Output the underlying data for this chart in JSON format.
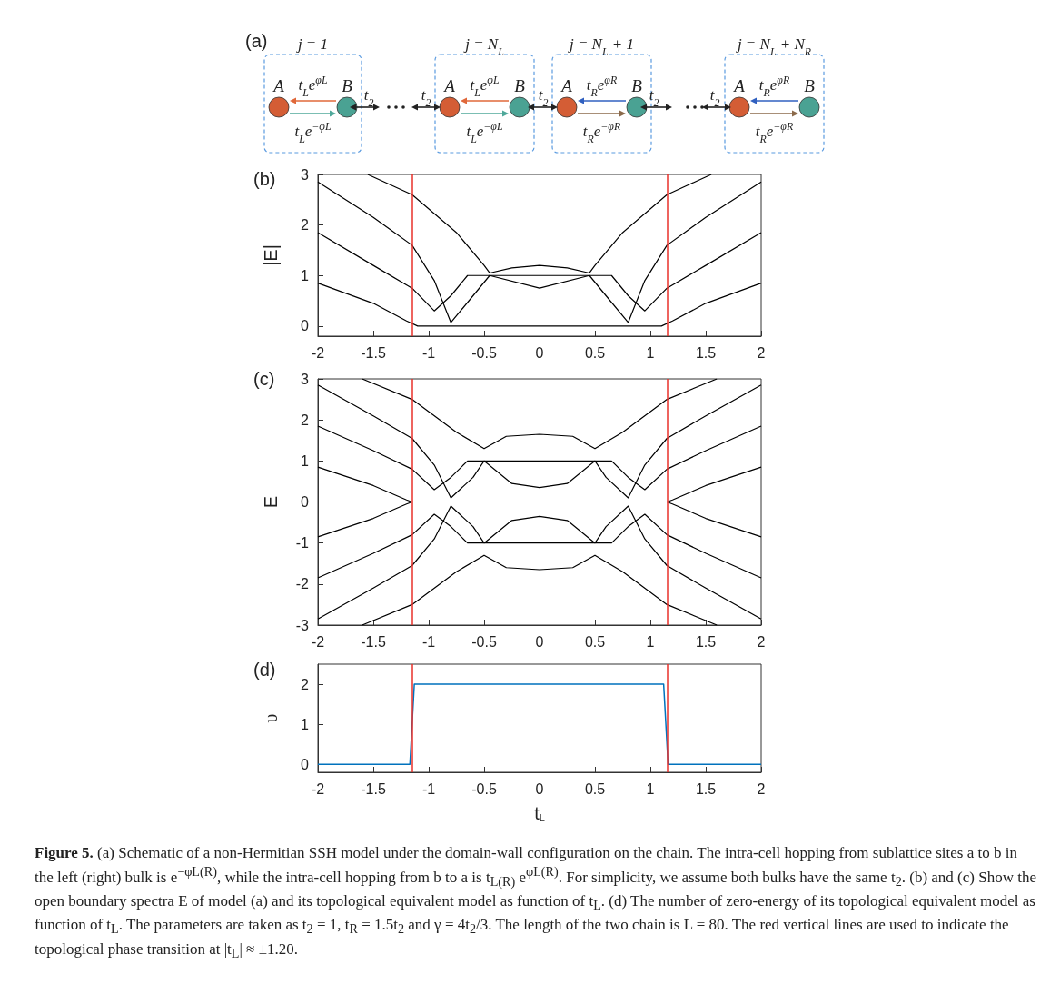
{
  "chart_data": [
    {
      "type": "other",
      "title": "(a)",
      "annotations": [
        "j = 1",
        "j = N$_{L}$",
        "j = N$_{L}$ + 1",
        "j = N$_{L}$ + N$_{R}$",
        "A",
        "B",
        "t$_{L}$e$^{φL}$",
        "t$_{L}$e$^{−φL}$",
        "A",
        "B",
        "t$_{L}$e$^{φL}$",
        "t$_{L}$e$^{−φL}$",
        "A",
        "B",
        "t$_{R}$e$^{φR}$",
        "t$_{R}$e$^{−φR}$",
        "A",
        "B",
        "t$_{R}$e$^{φR}$",
        "t$_{R}$e$^{−φR}$",
        "t$_{2}$",
        "t$_{2}$",
        "t$_{2}$",
        "t$_{2}$",
        "t$_{2}$"
      ]
    },
    {
      "type": "line",
      "title": "(b)",
      "ylabel": "|E|",
      "xlim": [
        -2,
        2
      ],
      "xticks": [
        -2,
        -1.5,
        -1,
        -0.5,
        0,
        0.5,
        1,
        1.5,
        2
      ],
      "ylim": [
        -0.2,
        3
      ],
      "yticks": [
        0,
        1,
        2,
        3
      ],
      "series": [
        {
          "color": "#000000",
          "x": [
            -2,
            -1.5,
            -1.2,
            -1.1,
            0,
            1.1,
            1.2,
            1.5,
            2
          ],
          "values": [
            0.85,
            0.45,
            0.1,
            0,
            0,
            0,
            0.1,
            0.45,
            0.85
          ]
        },
        {
          "color": "#000000",
          "x": [
            -2,
            -1.5,
            -1.15,
            -0.95,
            -0.8,
            -0.65,
            0.65,
            0.8,
            0.95,
            1.15,
            1.5,
            2
          ],
          "values": [
            1.85,
            1.2,
            0.75,
            0.3,
            0.6,
            1.0,
            1.0,
            0.6,
            0.3,
            0.75,
            1.2,
            1.85
          ]
        },
        {
          "color": "#000000",
          "x": [
            -2,
            -1.5,
            -1.15,
            -0.95,
            -0.8,
            -0.6,
            -0.45,
            0,
            0.45,
            0.6,
            0.8,
            0.95,
            1.15,
            1.5,
            2
          ],
          "values": [
            2.85,
            2.15,
            1.6,
            0.9,
            0.07,
            0.6,
            1.0,
            0.75,
            1.0,
            0.6,
            0.07,
            0.9,
            1.6,
            2.15,
            2.85
          ]
        },
        {
          "color": "#000000",
          "x": [
            -1.55,
            -1.15,
            -0.75,
            -0.5,
            -0.45,
            -0.25,
            0,
            0.25,
            0.45,
            0.5,
            0.75,
            1.15,
            1.55
          ],
          "values": [
            3,
            2.6,
            1.85,
            1.2,
            1.05,
            1.15,
            1.2,
            1.15,
            1.05,
            1.2,
            1.85,
            2.6,
            3
          ]
        }
      ],
      "ref_lines": [
        {
          "axis": "x",
          "value": -1.15,
          "color": "#e8302a"
        },
        {
          "axis": "x",
          "value": 1.15,
          "color": "#e8302a"
        }
      ]
    },
    {
      "type": "line",
      "title": "(c)",
      "ylabel": "E",
      "xlim": [
        -2,
        2
      ],
      "xticks": [
        -2,
        -1.5,
        -1,
        -0.5,
        0,
        0.5,
        1,
        1.5,
        2
      ],
      "ylim": [
        -3,
        3
      ],
      "yticks": [
        -3,
        -2,
        -1,
        0,
        1,
        2,
        3
      ],
      "series": [
        {
          "color": "#000000",
          "x": [
            -2,
            -1.5,
            -1.2,
            -1.15,
            0,
            1.15,
            1.2,
            1.5,
            2
          ],
          "values": [
            0.85,
            0.4,
            0.05,
            0,
            0,
            0,
            0.05,
            0.4,
            0.85
          ]
        },
        {
          "color": "#000000",
          "x": [
            -2,
            -1.5,
            -1.15,
            -0.95,
            -0.8,
            -0.65,
            0.65,
            0.8,
            0.95,
            1.15,
            1.5,
            2
          ],
          "values": [
            1.85,
            1.25,
            0.8,
            0.3,
            0.6,
            1.0,
            1.0,
            0.6,
            0.3,
            0.8,
            1.25,
            1.85
          ]
        },
        {
          "color": "#000000",
          "x": [
            -2,
            -1.5,
            -1.15,
            -0.95,
            -0.8,
            -0.6,
            -0.5,
            -0.25,
            0,
            0.25,
            0.5,
            0.6,
            0.8,
            0.95,
            1.15,
            1.5,
            2
          ],
          "values": [
            2.85,
            2.1,
            1.55,
            0.9,
            0.1,
            0.6,
            1.0,
            0.45,
            0.35,
            0.45,
            1.0,
            0.6,
            0.1,
            0.9,
            1.55,
            2.1,
            2.85
          ]
        },
        {
          "color": "#000000",
          "x": [
            -1.6,
            -1.15,
            -0.75,
            -0.5,
            -0.3,
            0,
            0.3,
            0.5,
            0.75,
            1.15,
            1.6
          ],
          "values": [
            3,
            2.5,
            1.7,
            1.3,
            1.6,
            1.65,
            1.6,
            1.3,
            1.7,
            2.5,
            3
          ]
        },
        {
          "color": "#000000",
          "x": [
            -2,
            -1.5,
            -1.2,
            -1.15,
            0,
            1.15,
            1.2,
            1.5,
            2
          ],
          "values": [
            -0.85,
            -0.4,
            -0.05,
            0,
            0,
            0,
            -0.05,
            -0.4,
            -0.85
          ]
        },
        {
          "color": "#000000",
          "x": [
            -2,
            -1.5,
            -1.15,
            -0.95,
            -0.8,
            -0.65,
            0.65,
            0.8,
            0.95,
            1.15,
            1.5,
            2
          ],
          "values": [
            -1.85,
            -1.25,
            -0.8,
            -0.3,
            -0.6,
            -1.0,
            -1.0,
            -0.6,
            -0.3,
            -0.8,
            -1.25,
            -1.85
          ]
        },
        {
          "color": "#000000",
          "x": [
            -2,
            -1.5,
            -1.15,
            -0.95,
            -0.8,
            -0.6,
            -0.5,
            -0.25,
            0,
            0.25,
            0.5,
            0.6,
            0.8,
            0.95,
            1.15,
            1.5,
            2
          ],
          "values": [
            -2.85,
            -2.1,
            -1.55,
            -0.9,
            -0.1,
            -0.6,
            -1.0,
            -0.45,
            -0.35,
            -0.45,
            -1.0,
            -0.6,
            -0.1,
            -0.9,
            -1.55,
            -2.1,
            -2.85
          ]
        },
        {
          "color": "#000000",
          "x": [
            -1.6,
            -1.15,
            -0.75,
            -0.5,
            -0.3,
            0,
            0.3,
            0.5,
            0.75,
            1.15,
            1.6
          ],
          "values": [
            -3,
            -2.5,
            -1.7,
            -1.3,
            -1.6,
            -1.65,
            -1.6,
            -1.3,
            -1.7,
            -2.5,
            -3
          ]
        }
      ],
      "ref_lines": [
        {
          "axis": "x",
          "value": -1.15,
          "color": "#e8302a"
        },
        {
          "axis": "x",
          "value": 1.15,
          "color": "#e8302a"
        }
      ]
    },
    {
      "type": "line",
      "title": "(d)",
      "xlabel": "t$_{L}$",
      "ylabel": "υ",
      "xlim": [
        -2,
        2
      ],
      "xticks": [
        -2,
        -1.5,
        -1,
        -0.5,
        0,
        0.5,
        1,
        1.5,
        2
      ],
      "ylim": [
        -0.2,
        2.5
      ],
      "yticks": [
        0,
        1,
        2
      ],
      "series": [
        {
          "color": "#0072bd",
          "x": [
            -2,
            -1.17,
            -1.13,
            1.12,
            1.16,
            2
          ],
          "values": [
            0,
            0,
            2,
            2,
            0,
            0
          ]
        }
      ],
      "ref_lines": [
        {
          "axis": "x",
          "value": -1.15,
          "color": "#e8302a"
        },
        {
          "axis": "x",
          "value": 1.15,
          "color": "#e8302a"
        }
      ],
      "annotations": [
        "Figure 5.",
        "(a) Schematic of a non-Hermitian SSH model under the domain-wall configuration on the chain. The intra-cell hopping from sublattice sites a to b in the left (right) bulk is e$^{−φL(R)}$, while the intra-cell hopping from b to a is t$_{L(R)}$ e$^{φL(R)}$. For simplicity, we assume both bulks have the same t$_{2}$. (b) and (c) Show the open boundary spectra E of model (a) and its topological equivalent model as function of t$_{L}$. (d) The number of zero-energy of its topological equivalent model as function of t$_{L}$. The parameters are taken as t$_{2}$ = 1, t$_{R}$ = 1.5t$_{2}$ and γ = 4t$_{2}$/3. The length of the two chain is L = 80. The red vertical lines are used to indicate the topological phase transition at |t$_{L}$| ≈ ±1.20."
      ]
    }
  ]
}
